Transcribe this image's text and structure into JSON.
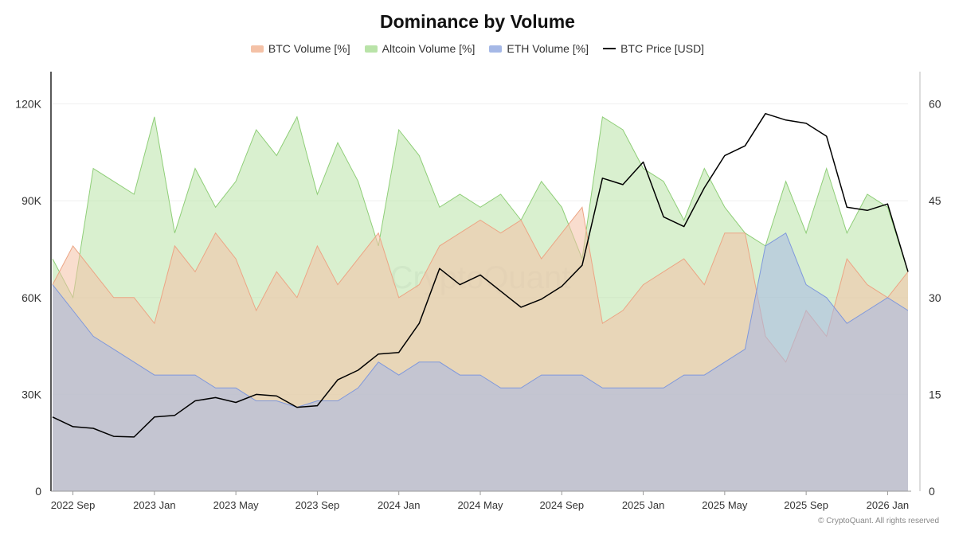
{
  "chart_data": {
    "type": "area",
    "title": "Dominance by Volume",
    "watermark": "CryptoQuant",
    "footer": "© CryptoQuant. All rights reserved",
    "x": [
      "2022-08",
      "2022-09",
      "2022-10",
      "2022-11",
      "2022-12",
      "2023-01",
      "2023-02",
      "2023-03",
      "2023-04",
      "2023-05",
      "2023-06",
      "2023-07",
      "2023-08",
      "2023-09",
      "2023-10",
      "2023-11",
      "2023-12",
      "2024-01",
      "2024-02",
      "2024-03",
      "2024-04",
      "2024-05",
      "2024-06",
      "2024-07",
      "2024-08",
      "2024-09",
      "2024-10",
      "2024-11",
      "2024-12",
      "2025-01",
      "2025-02",
      "2025-03",
      "2025-04",
      "2025-05",
      "2025-06",
      "2025-07",
      "2025-08",
      "2025-09",
      "2025-10",
      "2025-11",
      "2025-12",
      "2026-01",
      "2026-02"
    ],
    "x_tick_labels": [
      "2022 Sep",
      "2023 Jan",
      "2023 May",
      "2023 Sep",
      "2024 Jan",
      "2024 May",
      "2024 Sep",
      "2025 Jan",
      "2025 May",
      "2025 Sep",
      "2026 Jan"
    ],
    "x_tick_index": [
      1,
      5,
      9,
      13,
      17,
      21,
      25,
      29,
      33,
      37,
      41
    ],
    "left_axis": {
      "ylim": [
        0,
        130000
      ],
      "ticks": [
        0,
        30000,
        60000,
        90000,
        120000
      ],
      "tick_labels": [
        "0",
        "30K",
        "60K",
        "90K",
        "120K"
      ]
    },
    "right_axis": {
      "ylim": [
        0,
        65
      ],
      "ticks": [
        0,
        15,
        30,
        45,
        60
      ],
      "tick_labels": [
        "0",
        "15",
        "30",
        "45",
        "60"
      ]
    },
    "series": [
      {
        "name": "Altcoin Volume [%]",
        "axis": "right",
        "color": "#b9e3a8",
        "opacity": 0.55,
        "stroke": "#8fce78",
        "values": [
          36,
          30,
          50,
          48,
          46,
          58,
          40,
          50,
          44,
          48,
          56,
          52,
          58,
          46,
          54,
          48,
          38,
          56,
          52,
          44,
          46,
          44,
          46,
          42,
          48,
          44,
          36,
          58,
          56,
          50,
          48,
          42,
          50,
          44,
          40,
          38,
          48,
          40,
          50,
          40,
          46,
          44,
          34
        ]
      },
      {
        "name": "BTC Volume [%]",
        "axis": "right",
        "color": "#f4c1a6",
        "opacity": 0.55,
        "stroke": "#eca585",
        "values": [
          32,
          38,
          34,
          30,
          30,
          26,
          38,
          34,
          40,
          36,
          28,
          34,
          30,
          38,
          32,
          36,
          40,
          30,
          32,
          38,
          40,
          42,
          40,
          42,
          36,
          40,
          44,
          26,
          28,
          32,
          34,
          36,
          32,
          40,
          40,
          24,
          20,
          28,
          24,
          36,
          32,
          30,
          34
        ]
      },
      {
        "name": "ETH Volume [%]",
        "axis": "right",
        "color": "#a5b8e6",
        "opacity": 0.55,
        "stroke": "#7f98dc",
        "values": [
          32,
          28,
          24,
          22,
          20,
          18,
          18,
          18,
          16,
          16,
          14,
          14,
          13,
          14,
          14,
          16,
          20,
          18,
          20,
          20,
          18,
          18,
          16,
          16,
          18,
          18,
          18,
          16,
          16,
          16,
          16,
          18,
          18,
          20,
          22,
          38,
          40,
          32,
          30,
          26,
          28,
          30,
          28
        ]
      },
      {
        "name": "BTC Price [USD]",
        "axis": "left",
        "color": "#000000",
        "type": "line",
        "values": [
          23000,
          20000,
          19500,
          17000,
          16800,
          23000,
          23500,
          28000,
          29000,
          27500,
          30000,
          29500,
          26000,
          26500,
          34500,
          37500,
          42500,
          43000,
          52000,
          69000,
          64000,
          67000,
          62000,
          57000,
          59500,
          63500,
          70000,
          97000,
          95000,
          102000,
          85000,
          82000,
          94000,
          104000,
          107000,
          117000,
          115000,
          114000,
          110000,
          88000,
          87000,
          89000,
          68000
        ]
      }
    ]
  }
}
